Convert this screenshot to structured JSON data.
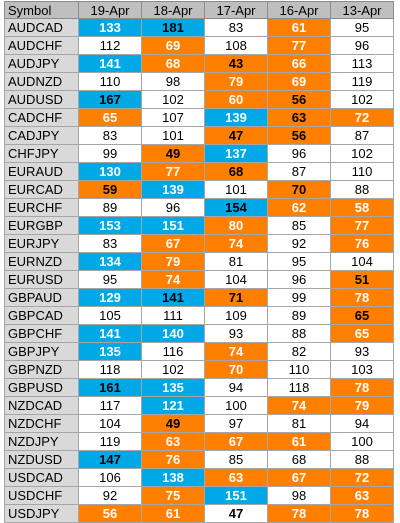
{
  "table": {
    "headers": [
      "Symbol",
      "19-Apr",
      "18-Apr",
      "17-Apr",
      "16-Apr",
      "13-Apr"
    ],
    "colors": {
      "orange": "#ff7f00",
      "blue": "#00a8e8",
      "symbol_bg": "#d9d9d9",
      "header_bg": "#bfbfbf"
    },
    "rows": [
      {
        "symbol": "AUDCAD",
        "cells": [
          {
            "v": "133",
            "c": "b"
          },
          {
            "v": "181",
            "c": "b",
            "bold": true
          },
          {
            "v": "83",
            "c": ""
          },
          {
            "v": "61",
            "c": "o"
          },
          {
            "v": "95",
            "c": ""
          }
        ]
      },
      {
        "symbol": "AUDCHF",
        "cells": [
          {
            "v": "112",
            "c": ""
          },
          {
            "v": "69",
            "c": "o"
          },
          {
            "v": "108",
            "c": ""
          },
          {
            "v": "77",
            "c": "o"
          },
          {
            "v": "96",
            "c": ""
          }
        ]
      },
      {
        "symbol": "AUDJPY",
        "cells": [
          {
            "v": "141",
            "c": "b"
          },
          {
            "v": "68",
            "c": "o"
          },
          {
            "v": "43",
            "c": "o",
            "bold": true
          },
          {
            "v": "66",
            "c": "o"
          },
          {
            "v": "113",
            "c": ""
          }
        ]
      },
      {
        "symbol": "AUDNZD",
        "cells": [
          {
            "v": "110",
            "c": ""
          },
          {
            "v": "98",
            "c": ""
          },
          {
            "v": "79",
            "c": "o"
          },
          {
            "v": "69",
            "c": "o"
          },
          {
            "v": "119",
            "c": ""
          }
        ]
      },
      {
        "symbol": "AUDUSD",
        "cells": [
          {
            "v": "167",
            "c": "b",
            "bold": true
          },
          {
            "v": "102",
            "c": ""
          },
          {
            "v": "60",
            "c": "o"
          },
          {
            "v": "56",
            "c": "o",
            "bold": true
          },
          {
            "v": "102",
            "c": ""
          }
        ]
      },
      {
        "symbol": "CADCHF",
        "cells": [
          {
            "v": "65",
            "c": "o"
          },
          {
            "v": "107",
            "c": ""
          },
          {
            "v": "139",
            "c": "b"
          },
          {
            "v": "63",
            "c": "o",
            "bold": true
          },
          {
            "v": "72",
            "c": "o"
          }
        ]
      },
      {
        "symbol": "CADJPY",
        "cells": [
          {
            "v": "83",
            "c": ""
          },
          {
            "v": "101",
            "c": ""
          },
          {
            "v": "47",
            "c": "o",
            "bold": true
          },
          {
            "v": "56",
            "c": "o",
            "bold": true
          },
          {
            "v": "87",
            "c": ""
          }
        ]
      },
      {
        "symbol": "CHFJPY",
        "cells": [
          {
            "v": "99",
            "c": ""
          },
          {
            "v": "49",
            "c": "o",
            "bold": true
          },
          {
            "v": "137",
            "c": "b"
          },
          {
            "v": "96",
            "c": ""
          },
          {
            "v": "102",
            "c": ""
          }
        ]
      },
      {
        "symbol": "EURAUD",
        "cells": [
          {
            "v": "130",
            "c": "b"
          },
          {
            "v": "77",
            "c": "o"
          },
          {
            "v": "68",
            "c": "o",
            "bold": true
          },
          {
            "v": "87",
            "c": ""
          },
          {
            "v": "110",
            "c": ""
          }
        ]
      },
      {
        "symbol": "EURCAD",
        "cells": [
          {
            "v": "59",
            "c": "o",
            "bold": true
          },
          {
            "v": "139",
            "c": "b"
          },
          {
            "v": "101",
            "c": ""
          },
          {
            "v": "70",
            "c": "o",
            "bold": true
          },
          {
            "v": "88",
            "c": ""
          }
        ]
      },
      {
        "symbol": "EURCHF",
        "cells": [
          {
            "v": "89",
            "c": ""
          },
          {
            "v": "96",
            "c": ""
          },
          {
            "v": "154",
            "c": "b",
            "bold": true
          },
          {
            "v": "62",
            "c": "o"
          },
          {
            "v": "58",
            "c": "o"
          }
        ]
      },
      {
        "symbol": "EURGBP",
        "cells": [
          {
            "v": "153",
            "c": "b"
          },
          {
            "v": "151",
            "c": "b"
          },
          {
            "v": "80",
            "c": "o"
          },
          {
            "v": "85",
            "c": ""
          },
          {
            "v": "77",
            "c": "o"
          }
        ]
      },
      {
        "symbol": "EURJPY",
        "cells": [
          {
            "v": "83",
            "c": ""
          },
          {
            "v": "67",
            "c": "o"
          },
          {
            "v": "74",
            "c": "o"
          },
          {
            "v": "92",
            "c": ""
          },
          {
            "v": "76",
            "c": "o"
          }
        ]
      },
      {
        "symbol": "EURNZD",
        "cells": [
          {
            "v": "134",
            "c": "b"
          },
          {
            "v": "79",
            "c": "o"
          },
          {
            "v": "81",
            "c": ""
          },
          {
            "v": "95",
            "c": ""
          },
          {
            "v": "104",
            "c": ""
          }
        ]
      },
      {
        "symbol": "EURUSD",
        "cells": [
          {
            "v": "95",
            "c": ""
          },
          {
            "v": "74",
            "c": "o"
          },
          {
            "v": "104",
            "c": ""
          },
          {
            "v": "96",
            "c": ""
          },
          {
            "v": "51",
            "c": "o",
            "bold": true
          }
        ]
      },
      {
        "symbol": "GBPAUD",
        "cells": [
          {
            "v": "129",
            "c": "b"
          },
          {
            "v": "141",
            "c": "b",
            "bold": true
          },
          {
            "v": "71",
            "c": "o",
            "bold": true
          },
          {
            "v": "99",
            "c": ""
          },
          {
            "v": "78",
            "c": "o"
          }
        ]
      },
      {
        "symbol": "GBPCAD",
        "cells": [
          {
            "v": "105",
            "c": ""
          },
          {
            "v": "111",
            "c": ""
          },
          {
            "v": "109",
            "c": ""
          },
          {
            "v": "89",
            "c": ""
          },
          {
            "v": "65",
            "c": "o",
            "bold": true
          }
        ]
      },
      {
        "symbol": "GBPCHF",
        "cells": [
          {
            "v": "141",
            "c": "b"
          },
          {
            "v": "140",
            "c": "b"
          },
          {
            "v": "93",
            "c": ""
          },
          {
            "v": "88",
            "c": ""
          },
          {
            "v": "65",
            "c": "o"
          }
        ]
      },
      {
        "symbol": "GBPJPY",
        "cells": [
          {
            "v": "135",
            "c": "b"
          },
          {
            "v": "116",
            "c": ""
          },
          {
            "v": "74",
            "c": "o"
          },
          {
            "v": "82",
            "c": ""
          },
          {
            "v": "93",
            "c": ""
          }
        ]
      },
      {
        "symbol": "GBPNZD",
        "cells": [
          {
            "v": "118",
            "c": ""
          },
          {
            "v": "102",
            "c": ""
          },
          {
            "v": "70",
            "c": "o"
          },
          {
            "v": "110",
            "c": ""
          },
          {
            "v": "103",
            "c": ""
          }
        ]
      },
      {
        "symbol": "GBPUSD",
        "cells": [
          {
            "v": "161",
            "c": "b",
            "bold": true
          },
          {
            "v": "135",
            "c": "b"
          },
          {
            "v": "94",
            "c": ""
          },
          {
            "v": "118",
            "c": ""
          },
          {
            "v": "78",
            "c": "o"
          }
        ]
      },
      {
        "symbol": "NZDCAD",
        "cells": [
          {
            "v": "117",
            "c": ""
          },
          {
            "v": "121",
            "c": "b"
          },
          {
            "v": "100",
            "c": ""
          },
          {
            "v": "74",
            "c": "o"
          },
          {
            "v": "79",
            "c": "o"
          }
        ]
      },
      {
        "symbol": "NZDCHF",
        "cells": [
          {
            "v": "104",
            "c": ""
          },
          {
            "v": "49",
            "c": "o",
            "bold": true
          },
          {
            "v": "97",
            "c": ""
          },
          {
            "v": "81",
            "c": ""
          },
          {
            "v": "94",
            "c": ""
          }
        ]
      },
      {
        "symbol": "NZDJPY",
        "cells": [
          {
            "v": "119",
            "c": ""
          },
          {
            "v": "63",
            "c": "o"
          },
          {
            "v": "67",
            "c": "o"
          },
          {
            "v": "61",
            "c": "o"
          },
          {
            "v": "100",
            "c": ""
          }
        ]
      },
      {
        "symbol": "NZDUSD",
        "cells": [
          {
            "v": "147",
            "c": "b",
            "bold": true
          },
          {
            "v": "76",
            "c": "o"
          },
          {
            "v": "85",
            "c": ""
          },
          {
            "v": "68",
            "c": ""
          },
          {
            "v": "88",
            "c": ""
          }
        ]
      },
      {
        "symbol": "USDCAD",
        "cells": [
          {
            "v": "106",
            "c": ""
          },
          {
            "v": "138",
            "c": "b"
          },
          {
            "v": "63",
            "c": "o"
          },
          {
            "v": "67",
            "c": "o"
          },
          {
            "v": "72",
            "c": "o"
          }
        ]
      },
      {
        "symbol": "USDCHF",
        "cells": [
          {
            "v": "92",
            "c": ""
          },
          {
            "v": "75",
            "c": "o"
          },
          {
            "v": "151",
            "c": "b"
          },
          {
            "v": "98",
            "c": ""
          },
          {
            "v": "63",
            "c": "o"
          }
        ]
      },
      {
        "symbol": "USDJPY",
        "cells": [
          {
            "v": "56",
            "c": "o"
          },
          {
            "v": "61",
            "c": "o"
          },
          {
            "v": "47",
            "c": "",
            "bold": true
          },
          {
            "v": "78",
            "c": "o"
          },
          {
            "v": "78",
            "c": "o"
          }
        ]
      }
    ]
  }
}
